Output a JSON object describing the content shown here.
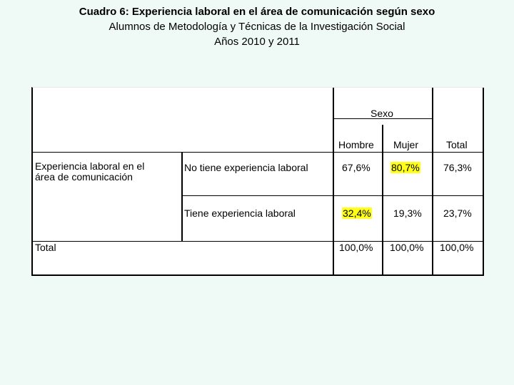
{
  "title": {
    "line1": "Cuadro 6: Experiencia laboral en el área de comunicación según sexo",
    "line2": "Alumnos de Metodología y Técnicas de la Investigación Social",
    "line3": "Años 2010 y 2011"
  },
  "table": {
    "group_header": "Sexo",
    "columns": [
      "Hombre",
      "Mujer",
      "Total"
    ],
    "variable_label_line1": "Experiencia laboral en el",
    "variable_label_line2": "área de comunicación",
    "rows": [
      {
        "label": "No tiene experiencia laboral",
        "values": [
          "67,6%",
          "80,7%",
          "76,3%"
        ],
        "highlight": [
          false,
          true,
          false
        ]
      },
      {
        "label": "Tiene experiencia laboral",
        "values": [
          "32,4%",
          "19,3%",
          "23,7%"
        ],
        "highlight": [
          true,
          false,
          false
        ]
      }
    ],
    "total_row": {
      "label": "Total",
      "values": [
        "100,0%",
        "100,0%",
        "100,0%"
      ]
    },
    "highlight_color": "#ffff1a"
  }
}
